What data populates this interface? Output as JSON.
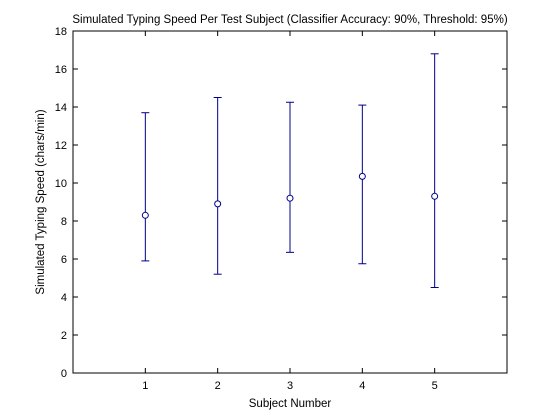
{
  "chart_data": {
    "type": "errorbar",
    "title": "Simulated Typing Speed Per Test Subject (Classifier Accuracy: 90%, Threshold: 95%)",
    "xlabel": "Subject Number",
    "ylabel": "Simulated Typing Speed (chars/min)",
    "xlim": [
      0,
      6
    ],
    "ylim": [
      0,
      18
    ],
    "xticks": [
      1,
      2,
      3,
      4,
      5
    ],
    "yticks": [
      0,
      2,
      4,
      6,
      8,
      10,
      12,
      14,
      16,
      18
    ],
    "x": [
      1,
      2,
      3,
      4,
      5
    ],
    "series": [
      {
        "mean": [
          8.3,
          8.9,
          9.2,
          10.35,
          9.3
        ],
        "lower": [
          5.9,
          5.2,
          6.35,
          5.75,
          4.5
        ],
        "upper": [
          13.7,
          14.5,
          14.25,
          14.1,
          16.8
        ],
        "color": "#00008b",
        "marker": "circle"
      }
    ],
    "grid": false,
    "legend": "none"
  }
}
